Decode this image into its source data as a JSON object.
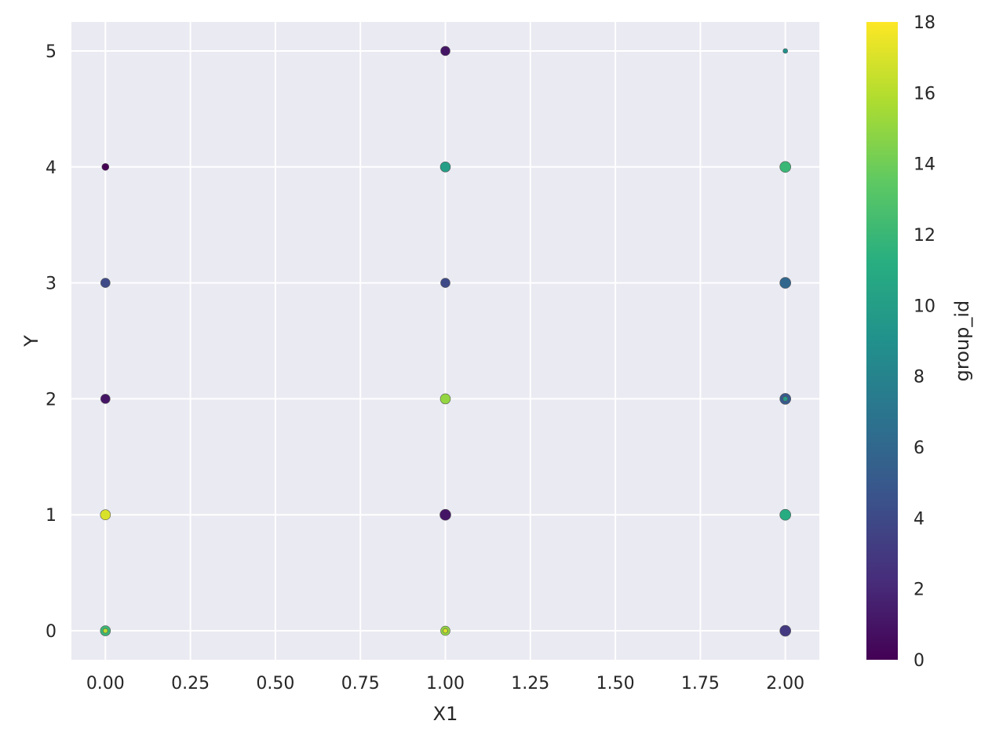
{
  "chart_data": {
    "type": "scatter",
    "title": "",
    "xlabel": "X1",
    "ylabel": "Y",
    "xlim": [
      -0.1,
      2.1
    ],
    "ylim": [
      -0.25,
      5.25
    ],
    "xticks": [
      0.0,
      0.25,
      0.5,
      0.75,
      1.0,
      1.25,
      1.5,
      1.75,
      2.0
    ],
    "xtick_labels": [
      "0.00",
      "0.25",
      "0.50",
      "0.75",
      "1.00",
      "1.25",
      "1.50",
      "1.75",
      "2.00"
    ],
    "yticks": [
      0,
      1,
      2,
      3,
      4,
      5
    ],
    "ytick_labels": [
      "0",
      "1",
      "2",
      "3",
      "4",
      "5"
    ],
    "grid": true,
    "background_color": "#eaeaf2",
    "grid_color": "#ffffff",
    "colormap": "viridis",
    "colorbar": {
      "label": "group_id",
      "range": [
        0,
        18
      ],
      "ticks": [
        0,
        2,
        4,
        6,
        8,
        10,
        12,
        14,
        16,
        18
      ],
      "tick_labels": [
        "0",
        "2",
        "4",
        "6",
        "8",
        "10",
        "12",
        "14",
        "16",
        "18"
      ]
    },
    "points": [
      {
        "x": 0,
        "y": 4,
        "group_id": 0,
        "size": 4.5
      },
      {
        "x": 0,
        "y": 3,
        "group_id": 4,
        "size": 6
      },
      {
        "x": 0,
        "y": 2,
        "group_id": 1,
        "size": 6
      },
      {
        "x": 0,
        "y": 1,
        "group_id": 17,
        "size": 6.5
      },
      {
        "x": 0,
        "y": 0,
        "group_id": 12,
        "size": 6.5
      },
      {
        "x": 0,
        "y": 0,
        "group_id": 16,
        "size": 3
      },
      {
        "x": 1,
        "y": 5,
        "group_id": 1,
        "size": 6
      },
      {
        "x": 1,
        "y": 4,
        "group_id": 10,
        "size": 6.5
      },
      {
        "x": 1,
        "y": 3,
        "group_id": 4,
        "size": 6
      },
      {
        "x": 1,
        "y": 2,
        "group_id": 15,
        "size": 6.5
      },
      {
        "x": 1,
        "y": 1,
        "group_id": 1,
        "size": 7
      },
      {
        "x": 1,
        "y": 0,
        "group_id": 15,
        "size": 6
      },
      {
        "x": 1,
        "y": 0,
        "group_id": 17,
        "size": 3
      },
      {
        "x": 2,
        "y": 5,
        "group_id": 9,
        "size": 3
      },
      {
        "x": 2,
        "y": 4,
        "group_id": 12,
        "size": 7
      },
      {
        "x": 2,
        "y": 3,
        "group_id": 6,
        "size": 7
      },
      {
        "x": 2,
        "y": 2,
        "group_id": 5,
        "size": 7
      },
      {
        "x": 2,
        "y": 2,
        "group_id": 10,
        "size": 3
      },
      {
        "x": 2,
        "y": 1,
        "group_id": 11,
        "size": 7
      },
      {
        "x": 2,
        "y": 0,
        "group_id": 3,
        "size": 7
      }
    ]
  }
}
